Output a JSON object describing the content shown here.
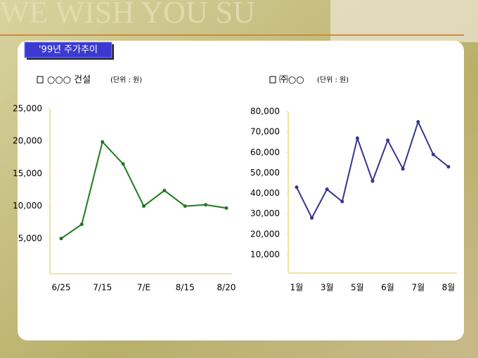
{
  "banner_text": "WE WISH YOU SU",
  "slide_title": "'99년 주가추이",
  "chart_data": [
    {
      "type": "line",
      "title": "○○○ 건설",
      "subtitle": "(단위 : 원)",
      "categories": [
        "6/25",
        null,
        "7/15",
        null,
        "7/E",
        null,
        "8/15",
        null,
        "8/20"
      ],
      "series": [
        {
          "color": "#1f7a1f",
          "values": [
            5000,
            7200,
            19900,
            16500,
            10000,
            12400,
            10000,
            10200,
            9700
          ]
        }
      ],
      "ylim": [
        0,
        25000
      ],
      "yticks": [
        {
          "value": 5000,
          "label": "5,000"
        },
        {
          "value": 10000,
          "label": "10,000"
        },
        {
          "value": 15000,
          "label": "15,000"
        },
        {
          "value": 20000,
          "label": "20,000"
        },
        {
          "value": 25000,
          "label": "25,000"
        }
      ]
    },
    {
      "type": "line",
      "title": "㈜○○",
      "subtitle": "(단위 : 원)",
      "categories": [
        "1월",
        null,
        "3월",
        null,
        "5월",
        null,
        "6월",
        null,
        "7월",
        null,
        "8월"
      ],
      "series": [
        {
          "color": "#35358f",
          "values": [
            43000,
            28000,
            42000,
            36000,
            67000,
            46000,
            66000,
            52000,
            75000,
            59000,
            53000
          ]
        }
      ],
      "ylim": [
        0,
        80000
      ],
      "yticks": [
        {
          "value": 10000,
          "label": "10,000"
        },
        {
          "value": 20000,
          "label": "20,000"
        },
        {
          "value": 30000,
          "label": "30,000"
        },
        {
          "value": 40000,
          "label": "40,000"
        },
        {
          "value": 50000,
          "label": "50,000"
        },
        {
          "value": 60000,
          "label": "60,000"
        },
        {
          "value": 70000,
          "label": "70,000"
        },
        {
          "value": 80000,
          "label": "80,000"
        }
      ]
    }
  ]
}
